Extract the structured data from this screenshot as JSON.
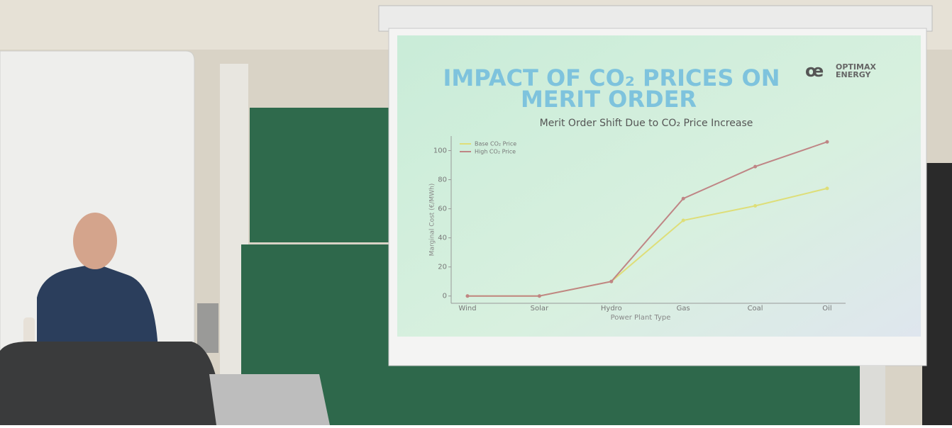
{
  "slide": {
    "title": [
      "IMPACT OF CO₂ PRICES ON",
      "MERIT ORDER"
    ],
    "logo": [
      "OPTIMAX",
      "ENERGY"
    ]
  },
  "chart_data": {
    "type": "line",
    "title": "Merit Order Shift Due to CO₂ Price Increase",
    "x_label": "Power Plant Type",
    "y_label": "Marginal Cost (€/MWh)",
    "categories": [
      "Wind",
      "Solar",
      "Hydro",
      "Gas",
      "Coal",
      "Oil"
    ],
    "series": [
      {
        "name": "Base CO₂ Price",
        "color": "#dede78",
        "values": [
          0,
          0,
          10,
          52,
          62,
          74
        ]
      },
      {
        "name": "High CO₂ Price",
        "color": "#bf8585",
        "values": [
          0,
          0,
          10,
          67,
          89,
          106
        ]
      }
    ],
    "ylim": [
      -5,
      110
    ],
    "yticks": [
      0,
      20,
      40,
      60,
      80,
      100
    ],
    "legend": "upper left"
  }
}
